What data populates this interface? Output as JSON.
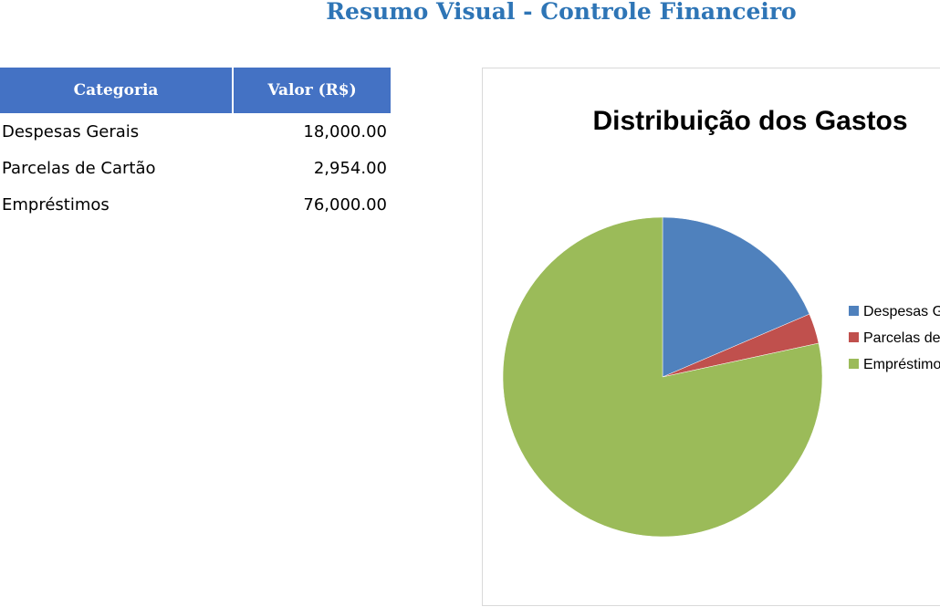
{
  "page": {
    "title": "Resumo Visual - Controle Financeiro"
  },
  "table": {
    "headers": [
      "Categoria",
      "Valor (R$)"
    ],
    "rows": [
      {
        "category": "Despesas Gerais",
        "value": "18,000.00"
      },
      {
        "category": "Parcelas de Cartão",
        "value": "2,954.00"
      },
      {
        "category": "Empréstimos",
        "value": "76,000.00"
      }
    ]
  },
  "colors": {
    "title": "#2e75b6",
    "header_bg": "#4472c4",
    "series": [
      "#4f81bd",
      "#c0504d",
      "#9bbb59"
    ]
  },
  "chart_data": {
    "type": "pie",
    "title": "Distribuição dos Gastos",
    "categories": [
      "Despesas Gerais",
      "Parcelas de Cartão",
      "Empréstimos"
    ],
    "values": [
      18000,
      2954,
      76000
    ],
    "legend": "right"
  }
}
